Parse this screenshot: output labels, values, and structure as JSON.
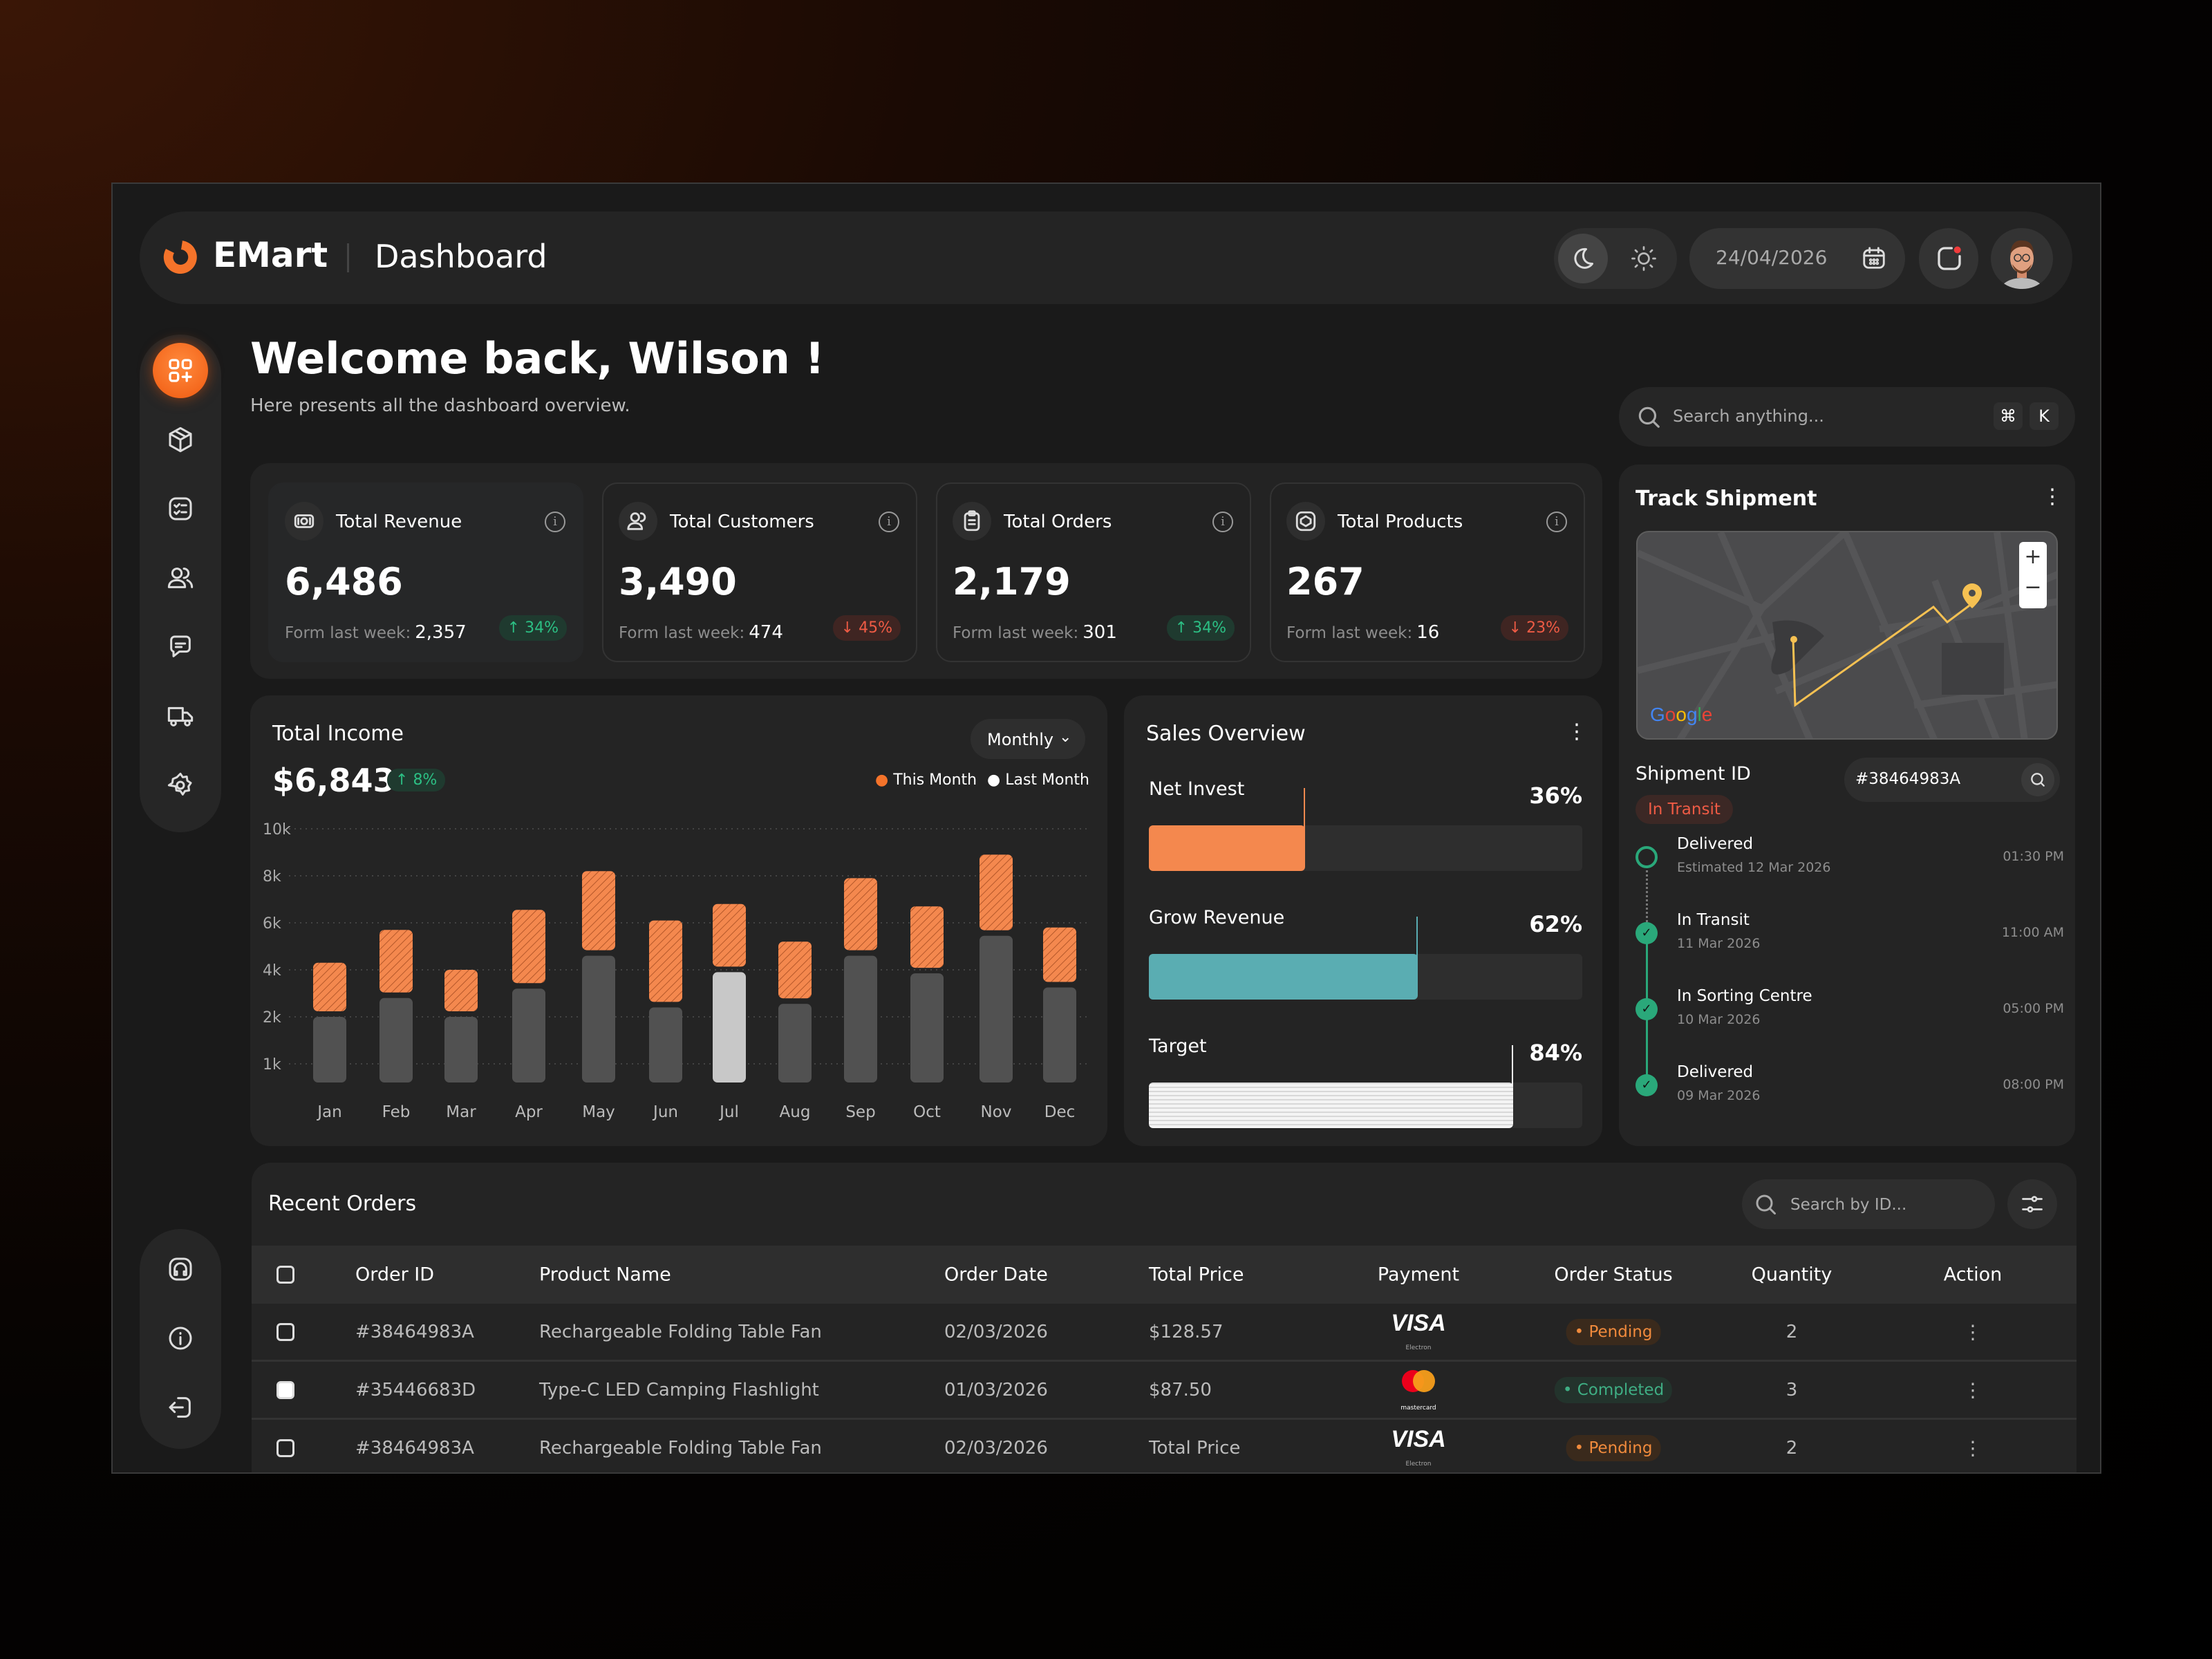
{
  "brand": {
    "name": "EMart",
    "page": "Dashboard",
    "accent": "#F4732A"
  },
  "header": {
    "date": "24/04/2026",
    "theme_active": "dark"
  },
  "welcome": {
    "title": "Welcome back, Wilson !",
    "subtitle": "Here presents all the dashboard overview."
  },
  "search": {
    "placeholder": "Search anything...",
    "kbd1": "⌘",
    "kbd2": "K"
  },
  "sidebar": {
    "items": [
      {
        "icon": "dashboard-icon",
        "active": true
      },
      {
        "icon": "box-icon"
      },
      {
        "icon": "list-icon"
      },
      {
        "icon": "users-icon"
      },
      {
        "icon": "chat-icon"
      },
      {
        "icon": "truck-icon"
      },
      {
        "icon": "gear-icon"
      }
    ],
    "bottom": [
      {
        "icon": "support-icon"
      },
      {
        "icon": "info-icon"
      },
      {
        "icon": "logout-icon"
      }
    ]
  },
  "stats": [
    {
      "label": "Total Revenue",
      "value": "6,486",
      "prev_label": "Form last week:",
      "prev": "2,357",
      "change": "34%",
      "dir": "up",
      "icon": "money-icon"
    },
    {
      "label": "Total Customers",
      "value": "3,490",
      "prev_label": "Form last week:",
      "prev": "474",
      "change": "45%",
      "dir": "down",
      "icon": "users-icon"
    },
    {
      "label": "Total Orders",
      "value": "2,179",
      "prev_label": "Form last week:",
      "prev": "301",
      "change": "34%",
      "dir": "up",
      "icon": "clipboard-icon"
    },
    {
      "label": "Total Products",
      "value": "267",
      "prev_label": "Form last week:",
      "prev": "16",
      "change": "23%",
      "dir": "down",
      "icon": "product-icon"
    }
  ],
  "income": {
    "title": "Total Income",
    "amount": "$6,843",
    "change": "8%",
    "period": "Monthly"
  },
  "chart_data": {
    "type": "bar",
    "title": "Total Income",
    "categories": [
      "Jan",
      "Feb",
      "Mar",
      "Apr",
      "May",
      "Jun",
      "Jul",
      "Aug",
      "Sep",
      "Oct",
      "Nov",
      "Dec"
    ],
    "y_ticks": [
      "10k",
      "8k",
      "6k",
      "4k",
      "2k",
      "1k"
    ],
    "y_tick_values": [
      10000,
      8000,
      6000,
      4000,
      2000,
      1000
    ],
    "grid": true,
    "legend": "top-right",
    "series": [
      {
        "name": "This Month",
        "color": "#F4884E",
        "values": [
          4300,
          5700,
          4000,
          6550,
          8200,
          6100,
          6800,
          5200,
          7900,
          6700,
          8900,
          5800
        ]
      },
      {
        "name": "Last Month",
        "color": "#515151",
        "values": [
          2000,
          2800,
          2000,
          3200,
          4600,
          2400,
          3900,
          2550,
          4600,
          3850,
          5450,
          3250
        ]
      }
    ],
    "highlight": "Jul",
    "highlight_color": "#C8C8C8"
  },
  "sales": {
    "title": "Sales Overview",
    "items": [
      {
        "label": "Net Invest",
        "value": "36%",
        "pct": 36,
        "color": "#F4884E"
      },
      {
        "label": "Grow Revenue",
        "value": "62%",
        "pct": 62,
        "color": "#5AADB2"
      },
      {
        "label": "Target",
        "value": "84%",
        "pct": 84,
        "color": "#F2F2F2"
      }
    ]
  },
  "track": {
    "title": "Track Shipment",
    "map_brand": "Google",
    "id_label": "Shipment ID",
    "id_value": "#38464983A",
    "status": "In Transit",
    "timeline": [
      {
        "title": "Delivered",
        "date": "Estimated 12 Mar 2026",
        "time": "01:30 PM",
        "done": false
      },
      {
        "title": "In Transit",
        "date": "11 Mar 2026",
        "time": "11:00 AM",
        "done": true
      },
      {
        "title": "In Sorting Centre",
        "date": "10 Mar 2026",
        "time": "05:00 PM",
        "done": true
      },
      {
        "title": "Delivered",
        "date": "09 Mar 2026",
        "time": "08:00 PM",
        "done": true
      }
    ]
  },
  "orders": {
    "title": "Recent Orders",
    "search_placeholder": "Search by ID...",
    "columns": [
      "Order ID",
      "Product Name",
      "Order Date",
      "Total Price",
      "Payment",
      "Order Status",
      "Quantity",
      "Action"
    ],
    "rows": [
      {
        "id": "#38464983A",
        "product": "Rechargeable Folding Table Fan",
        "date": "02/03/2026",
        "price": "$128.57",
        "payment": "VISA",
        "payment_sub": "Electron",
        "status": "Pending",
        "qty": "2",
        "checked": false
      },
      {
        "id": "#35446683D",
        "product": "Type-C LED Camping Flashlight",
        "date": "01/03/2026",
        "price": "$87.50",
        "payment": "mastercard",
        "payment_sub": "mastercard",
        "status": "Completed",
        "qty": "3",
        "checked": true
      },
      {
        "id": "#38464983A",
        "product": "Rechargeable Folding Table Fan",
        "date": "02/03/2026",
        "price": "Total Price",
        "payment": "VISA",
        "payment_sub": "Electron",
        "status": "Pending",
        "qty": "2",
        "checked": false
      }
    ]
  }
}
